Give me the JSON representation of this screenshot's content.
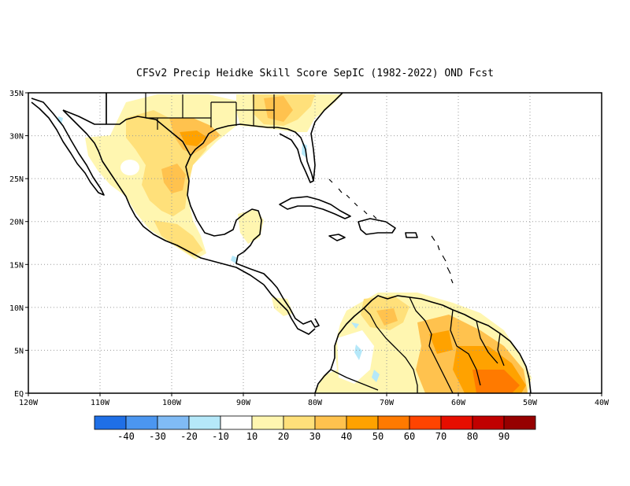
{
  "title": "CFSv2 Precip Heidke Skill Score SepIC (1982-2022) OND Fcst",
  "map": {
    "lon_range": [
      -120,
      -40
    ],
    "lat_range": [
      0,
      35
    ],
    "lon_ticks": [
      "120W",
      "110W",
      "100W",
      "90W",
      "80W",
      "70W",
      "60W",
      "50W",
      "40W"
    ],
    "lat_ticks": [
      "EQ",
      "5N",
      "10N",
      "15N",
      "20N",
      "25N",
      "30N",
      "35N"
    ],
    "grid": "dotted",
    "colors": {
      "land_outline": "#000000",
      "frame": "#000000",
      "grid": "#999999"
    }
  },
  "colorbar": {
    "labels": [
      "-40",
      "-30",
      "-20",
      "-10",
      "10",
      "20",
      "30",
      "40",
      "50",
      "60",
      "70",
      "80",
      "90"
    ],
    "colors": [
      "#1f6fe6",
      "#4b96f0",
      "#80bbf5",
      "#b5e8f9",
      "#ffffff",
      "#fff6b0",
      "#ffe07a",
      "#ffc24e",
      "#ffa200",
      "#ff7a00",
      "#ff4400",
      "#e60e00",
      "#c00000",
      "#960000"
    ]
  },
  "skill_regions": [
    {
      "name": "mexico-plateau",
      "level": 20,
      "color": "#fff6b0"
    },
    {
      "name": "northern-mexico",
      "level": 30,
      "color": "#ffe07a"
    },
    {
      "name": "south-texas",
      "level": 40,
      "color": "#ffc24e"
    },
    {
      "name": "gulf-states",
      "level": 30,
      "color": "#ffe07a"
    },
    {
      "name": "yucatan",
      "level": 20,
      "color": "#fff6b0"
    },
    {
      "name": "venezuela-coast",
      "level": 30,
      "color": "#ffe07a"
    },
    {
      "name": "guianas",
      "level": 40,
      "color": "#ffc24e"
    },
    {
      "name": "northern-brazil",
      "level": 50,
      "color": "#ffa200"
    },
    {
      "name": "colombia-negative",
      "level": -10,
      "color": "#b5e8f9"
    }
  ]
}
